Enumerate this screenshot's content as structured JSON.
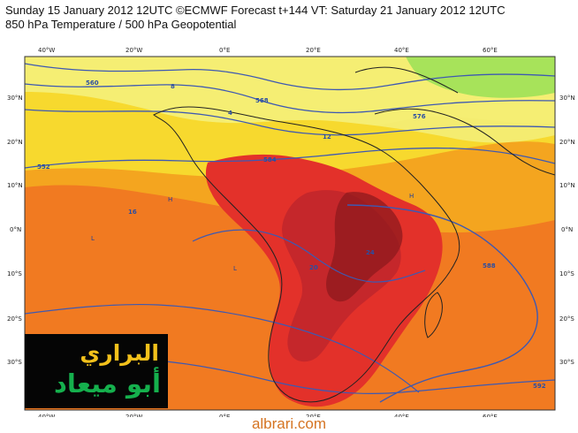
{
  "header": {
    "line1": "Sunday 15 January 2012 12UTC ©ECMWF Forecast t+144 VT: Saturday 21 January 2012 12UTC",
    "line2": "850 hPa Temperature / 500 hPa Geopotential"
  },
  "map": {
    "lon_labels": [
      "40°W",
      "20°W",
      "0°E",
      "20°E",
      "40°E",
      "60°E"
    ],
    "lat_labels_left": [
      "30°N",
      "20°N",
      "10°N",
      "0°N",
      "10°S",
      "20°S",
      "30°S"
    ],
    "lat_labels_right": [
      "30°N",
      "20°N",
      "10°N",
      "0°N",
      "10°S",
      "20°S",
      "30°S"
    ],
    "contour_labels": [
      "552",
      "560",
      "568",
      "576",
      "584",
      "588",
      "592",
      "4",
      "8",
      "12",
      "16",
      "20",
      "24"
    ],
    "pressure_marks": [
      "H",
      "L"
    ],
    "colors": {
      "cold_green": "#a7e35a",
      "light_yellow": "#f4ec70",
      "yellow": "#f7d92e",
      "orange": "#f4a51f",
      "deep_orange": "#f06b1f",
      "red": "#e3312a",
      "dark_red": "#b61f24",
      "coast": "#222222",
      "contour": "#3e59b2"
    }
  },
  "overlay": {
    "logo_line_1": "البراري",
    "logo_line_2": "أبو ميعاد"
  },
  "footer": {
    "site": "albrari.com"
  }
}
